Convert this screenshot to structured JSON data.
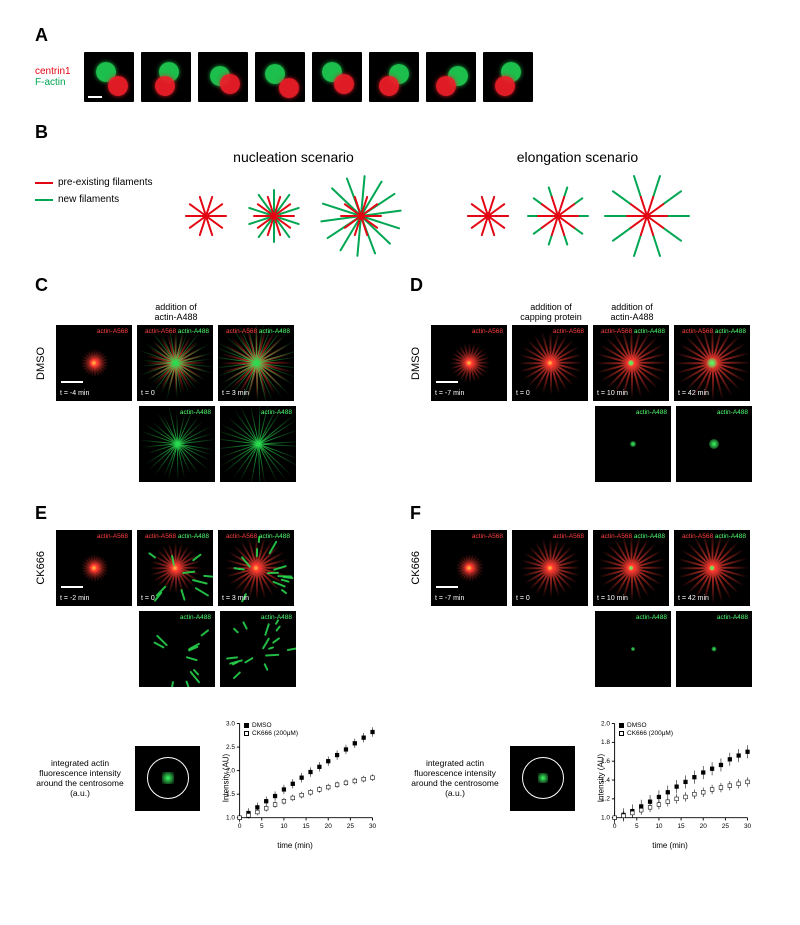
{
  "A": {
    "letter": "A",
    "labels": [
      "centrin1",
      "F-actin"
    ],
    "cells": [
      {
        "g": [
          12,
          10
        ],
        "r": [
          24,
          24
        ]
      },
      {
        "g": [
          18,
          10
        ],
        "r": [
          14,
          24
        ]
      },
      {
        "g": [
          12,
          14
        ],
        "r": [
          22,
          22
        ]
      },
      {
        "g": [
          10,
          12
        ],
        "r": [
          24,
          26
        ]
      },
      {
        "g": [
          10,
          10
        ],
        "r": [
          22,
          22
        ]
      },
      {
        "g": [
          20,
          12
        ],
        "r": [
          10,
          24
        ]
      },
      {
        "g": [
          22,
          14
        ],
        "r": [
          10,
          24
        ]
      },
      {
        "g": [
          18,
          10
        ],
        "r": [
          12,
          24
        ]
      }
    ]
  },
  "B": {
    "letter": "B",
    "legend": [
      {
        "color": "#e30613",
        "text": "pre-existing filaments"
      },
      {
        "color": "#00a651",
        "text": "new filaments"
      }
    ],
    "scenarios": [
      {
        "title": "nucleation scenario",
        "mode": "nucleation",
        "stars": [
          {
            "size": 48,
            "redLen": 20,
            "newCount": 0,
            "newLen": 0
          },
          {
            "size": 60,
            "redLen": 20,
            "newCount": 10,
            "newLen": 26
          },
          {
            "size": 86,
            "redLen": 20,
            "newCount": 14,
            "newLen": 40
          }
        ]
      },
      {
        "title": "elongation scenario",
        "mode": "elongation",
        "stars": [
          {
            "size": 48,
            "redLen": 20,
            "newLen": 0
          },
          {
            "size": 64,
            "redLen": 20,
            "newLen": 10
          },
          {
            "size": 86,
            "redLen": 20,
            "newLen": 22
          }
        ]
      }
    ]
  },
  "C": {
    "letter": "C",
    "row": "DMSO",
    "caption": "addition of\nactin-A488",
    "frames": [
      {
        "t": "t = -4 min",
        "ch": [
          "actin-A568"
        ],
        "r": 1,
        "g": 0,
        "rSize": 14,
        "gSize": 0,
        "scalebar": 1
      },
      {
        "t": "t = 0",
        "ch": [
          "actin-A568",
          "actin-A488"
        ],
        "r": 1,
        "g": 1,
        "rSize": 30,
        "gSize": 36
      },
      {
        "t": "t = 3 min",
        "ch": [
          "actin-A568",
          "actin-A488"
        ],
        "r": 1,
        "g": 1,
        "rSize": 36,
        "gSize": 44
      }
    ],
    "greenRow": [
      {
        "ch": [
          "actin-A488"
        ],
        "gSize": 36
      },
      {
        "ch": [
          "actin-A488"
        ],
        "gSize": 44
      }
    ]
  },
  "D": {
    "letter": "D",
    "row": "DMSO",
    "caption1": "addition of\ncapping protein",
    "caption2": "addition of\nactin-A488",
    "frames": [
      {
        "t": "t = -7 min",
        "ch": [
          "actin-A568"
        ],
        "r": 1,
        "rSize": 20,
        "scalebar": 1
      },
      {
        "t": "t = 0",
        "ch": [
          "actin-A568"
        ],
        "r": 1,
        "rSize": 32
      },
      {
        "t": "t = 10 min",
        "ch": [
          "actin-A568",
          "actin-A488"
        ],
        "r": 1,
        "rSize": 36,
        "dot": 6
      },
      {
        "t": "t = 42 min",
        "ch": [
          "actin-A568",
          "actin-A488"
        ],
        "r": 1,
        "rSize": 38,
        "dot": 10
      }
    ],
    "greenRow": [
      {
        "ch": [
          "actin-A488"
        ],
        "dot": 6
      },
      {
        "ch": [
          "actin-A488"
        ],
        "dot": 10
      }
    ]
  },
  "E": {
    "letter": "E",
    "row": "CK666",
    "frames": [
      {
        "t": "t = -2 min",
        "ch": [
          "actin-A568"
        ],
        "r": 1,
        "rSize": 14,
        "scalebar": 1
      },
      {
        "t": "t = 0",
        "ch": [
          "actin-A568",
          "actin-A488"
        ],
        "r": 1,
        "rSize": 26,
        "gPatches": 1,
        "gN": 10
      },
      {
        "t": "t = 3 min",
        "ch": [
          "actin-A568",
          "actin-A488"
        ],
        "r": 1,
        "rSize": 32,
        "gPatches": 1,
        "gN": 14
      }
    ],
    "greenRow": [
      {
        "ch": [
          "actin-A488"
        ],
        "gPatches": 1,
        "gN": 10
      },
      {
        "ch": [
          "actin-A488"
        ],
        "gPatches": 1,
        "gN": 16
      }
    ]
  },
  "F": {
    "letter": "F",
    "row": "CK666",
    "frames": [
      {
        "t": "t = -7 min",
        "ch": [
          "actin-A568"
        ],
        "r": 1,
        "rSize": 14,
        "scalebar": 1
      },
      {
        "t": "t = 0",
        "ch": [
          "actin-A568"
        ],
        "r": 1,
        "rSize": 30
      },
      {
        "t": "t = 10 min",
        "ch": [
          "actin-A568",
          "actin-A488"
        ],
        "r": 1,
        "rSize": 34,
        "dot": 4
      },
      {
        "t": "t = 42 min",
        "ch": [
          "actin-A568",
          "actin-A488"
        ],
        "r": 1,
        "rSize": 36,
        "dot": 5
      }
    ],
    "greenRow": [
      {
        "ch": [
          "actin-A488"
        ],
        "dot": 4
      },
      {
        "ch": [
          "actin-A488"
        ],
        "dot": 5
      }
    ]
  },
  "chartLeft": {
    "txt": "integrated actin\nfluorescence intensity\naround the centrosome (a.u.)",
    "thumbDot": 12,
    "thumbGreen": 1,
    "xlabel": "time (min)",
    "ylabel": "Intensity (AU)",
    "xlim": [
      0,
      30
    ],
    "ylim": [
      1.0,
      3.0
    ],
    "xtick": 5,
    "ytick": 0.5,
    "legend": [
      {
        "sym": "f",
        "text": "DMSO"
      },
      {
        "sym": "o",
        "text": "CK666 (200μM)"
      }
    ],
    "series": [
      {
        "sym": "f",
        "data": [
          [
            0,
            1.0
          ],
          [
            2,
            1.1
          ],
          [
            4,
            1.22
          ],
          [
            6,
            1.35
          ],
          [
            8,
            1.46
          ],
          [
            10,
            1.6
          ],
          [
            12,
            1.72
          ],
          [
            14,
            1.85
          ],
          [
            16,
            1.97
          ],
          [
            18,
            2.08
          ],
          [
            20,
            2.2
          ],
          [
            22,
            2.33
          ],
          [
            24,
            2.45
          ],
          [
            26,
            2.58
          ],
          [
            28,
            2.7
          ],
          [
            30,
            2.82
          ]
        ],
        "err": 0.1
      },
      {
        "sym": "o",
        "data": [
          [
            0,
            1.0
          ],
          [
            2,
            1.05
          ],
          [
            4,
            1.12
          ],
          [
            6,
            1.2
          ],
          [
            8,
            1.28
          ],
          [
            10,
            1.35
          ],
          [
            12,
            1.42
          ],
          [
            14,
            1.48
          ],
          [
            16,
            1.54
          ],
          [
            18,
            1.6
          ],
          [
            20,
            1.65
          ],
          [
            22,
            1.7
          ],
          [
            24,
            1.74
          ],
          [
            26,
            1.78
          ],
          [
            28,
            1.82
          ],
          [
            30,
            1.85
          ]
        ],
        "err": 0.07
      }
    ]
  },
  "chartRight": {
    "txt": "integrated actin\nfluorescence intensity\naround the centrosome (a.u.)",
    "thumbDot": 10,
    "thumbGreen": 1,
    "xlabel": "time (min)",
    "ylabel": "Intensity (AU)",
    "xlim": [
      0,
      30
    ],
    "ylim": [
      1.0,
      2.0
    ],
    "xtick": 5,
    "ytick": 0.2,
    "legend": [
      {
        "sym": "f",
        "text": "DMSO"
      },
      {
        "sym": "o",
        "text": "CK666 (200μM)"
      }
    ],
    "series": [
      {
        "sym": "f",
        "data": [
          [
            0,
            1.0
          ],
          [
            2,
            1.03
          ],
          [
            4,
            1.07
          ],
          [
            6,
            1.12
          ],
          [
            8,
            1.17
          ],
          [
            10,
            1.22
          ],
          [
            12,
            1.27
          ],
          [
            14,
            1.33
          ],
          [
            16,
            1.38
          ],
          [
            18,
            1.43
          ],
          [
            20,
            1.48
          ],
          [
            22,
            1.52
          ],
          [
            24,
            1.56
          ],
          [
            26,
            1.62
          ],
          [
            28,
            1.66
          ],
          [
            30,
            1.7
          ]
        ],
        "err": 0.07
      },
      {
        "sym": "o",
        "data": [
          [
            0,
            1.0
          ],
          [
            2,
            1.02
          ],
          [
            4,
            1.05
          ],
          [
            6,
            1.08
          ],
          [
            8,
            1.11
          ],
          [
            10,
            1.14
          ],
          [
            12,
            1.17
          ],
          [
            14,
            1.2
          ],
          [
            16,
            1.22
          ],
          [
            18,
            1.25
          ],
          [
            20,
            1.27
          ],
          [
            22,
            1.3
          ],
          [
            24,
            1.32
          ],
          [
            26,
            1.34
          ],
          [
            28,
            1.36
          ],
          [
            30,
            1.38
          ]
        ],
        "err": 0.05
      }
    ]
  }
}
